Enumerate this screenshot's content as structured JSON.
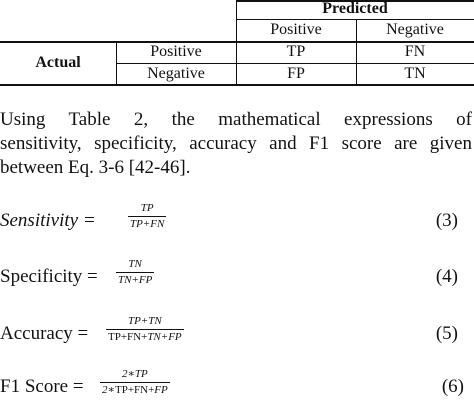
{
  "table": {
    "predicted_header": "Predicted",
    "positive_col": "Positive",
    "negative_col": "Negative",
    "actual_label": "Actual",
    "rows": [
      {
        "label": "Positive",
        "cells": [
          "TP",
          "FN"
        ]
      },
      {
        "label": "Negative",
        "cells": [
          "FP",
          "TN"
        ]
      }
    ]
  },
  "paragraph": {
    "lines": [
      "Using Table 2, the mathematical expressions of",
      "sensitivity, specificity, accuracy and F1 score are given",
      "between Eq. 3-6 [42-46]."
    ]
  },
  "equations": [
    {
      "lhs": "Sensitivity =",
      "num": "TP",
      "den": "TP+FN",
      "number": "(3)"
    },
    {
      "lhs": "Specificity =",
      "num": "TN",
      "den": "TN+FP",
      "number": "(4)"
    },
    {
      "lhs": "Accuracy =",
      "num": "TP+TN",
      "den_a": "TP+FN+",
      "den_b": "TN+FP",
      "number": "(5)"
    },
    {
      "lhs": "F1 Score =",
      "num": "2∗TP",
      "den_a": "2∗",
      "den_b": "TP+FN+",
      "den_c": "FP",
      "number": "(6)"
    }
  ]
}
